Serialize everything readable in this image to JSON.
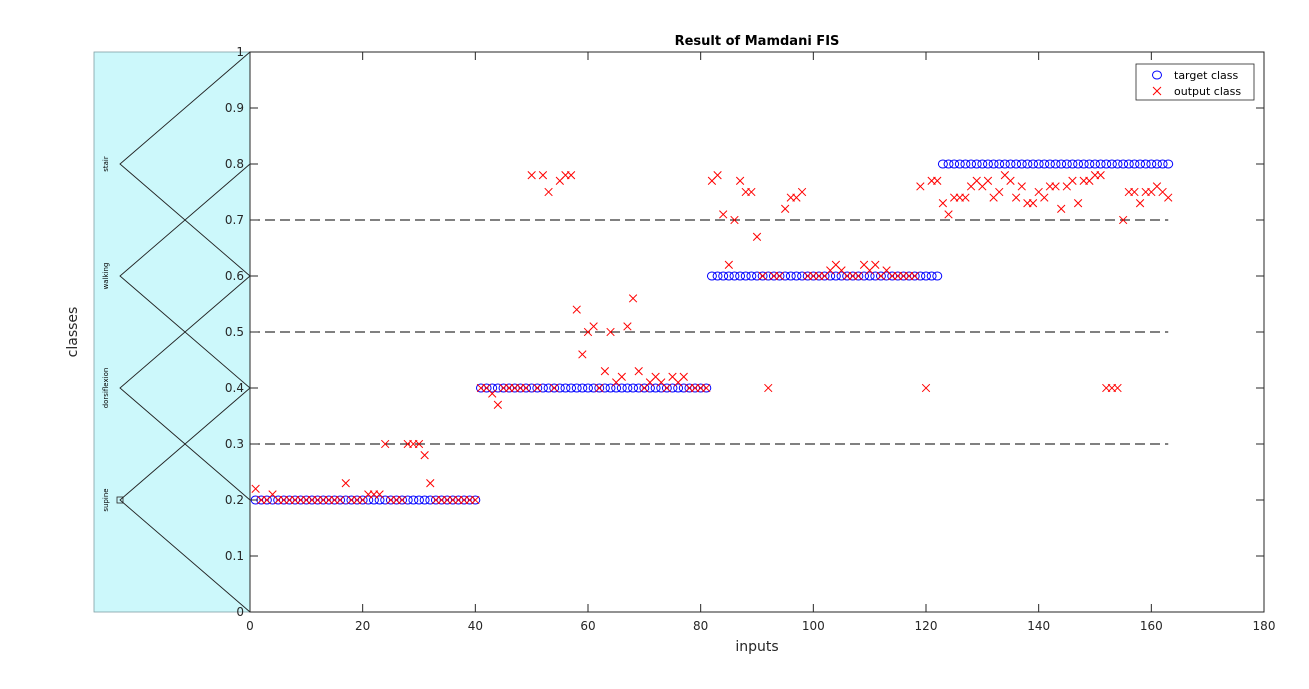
{
  "chart_data": {
    "type": "scatter",
    "title": "Result of Mamdani FIS",
    "xlabel": "inputs",
    "ylabel": "classes",
    "xlim": [
      0,
      180
    ],
    "ylim": [
      0,
      1
    ],
    "xticks": [
      0,
      20,
      40,
      60,
      80,
      100,
      120,
      140,
      160,
      180
    ],
    "yticks": [
      0,
      0.1,
      0.2,
      0.3,
      0.4,
      0.5,
      0.6,
      0.7,
      0.8,
      0.9,
      1
    ],
    "grid": false,
    "legend_position": "top-right",
    "thresholds": [
      {
        "y": 0.3,
        "x_range": [
          0,
          163
        ],
        "style": "dashed"
      },
      {
        "y": 0.5,
        "x_range": [
          0,
          163
        ],
        "style": "dashed"
      },
      {
        "y": 0.7,
        "x_range": [
          0,
          163
        ],
        "style": "dashed"
      }
    ],
    "membership_panel": {
      "background": "#ccf8fb",
      "labels": [
        "stair",
        "walking",
        "dorsiflexion",
        "supine"
      ],
      "peaks": [
        0.8,
        0.6,
        0.4,
        0.2
      ],
      "half_width": 0.2,
      "marker_y": 0.2
    },
    "series": [
      {
        "name": "target class",
        "marker": "circle",
        "color": "#0000ff",
        "segments": [
          {
            "x_start": 1,
            "x_end": 40,
            "y": 0.2
          },
          {
            "x_start": 41,
            "x_end": 81,
            "y": 0.4
          },
          {
            "x_start": 82,
            "x_end": 122,
            "y": 0.6
          },
          {
            "x_start": 123,
            "x_end": 163,
            "y": 0.8
          }
        ]
      },
      {
        "name": "output class",
        "marker": "x",
        "color": "#ff0000",
        "points": [
          [
            1,
            0.22
          ],
          [
            2,
            0.2
          ],
          [
            3,
            0.2
          ],
          [
            4,
            0.21
          ],
          [
            5,
            0.2
          ],
          [
            6,
            0.2
          ],
          [
            7,
            0.2
          ],
          [
            8,
            0.2
          ],
          [
            9,
            0.2
          ],
          [
            10,
            0.2
          ],
          [
            11,
            0.2
          ],
          [
            12,
            0.2
          ],
          [
            13,
            0.2
          ],
          [
            14,
            0.2
          ],
          [
            15,
            0.2
          ],
          [
            16,
            0.2
          ],
          [
            17,
            0.23
          ],
          [
            18,
            0.2
          ],
          [
            19,
            0.2
          ],
          [
            20,
            0.2
          ],
          [
            21,
            0.21
          ],
          [
            22,
            0.21
          ],
          [
            23,
            0.21
          ],
          [
            24,
            0.3
          ],
          [
            25,
            0.2
          ],
          [
            26,
            0.2
          ],
          [
            27,
            0.2
          ],
          [
            28,
            0.3
          ],
          [
            29,
            0.3
          ],
          [
            30,
            0.3
          ],
          [
            31,
            0.28
          ],
          [
            32,
            0.23
          ],
          [
            33,
            0.2
          ],
          [
            34,
            0.2
          ],
          [
            35,
            0.2
          ],
          [
            36,
            0.2
          ],
          [
            37,
            0.2
          ],
          [
            38,
            0.2
          ],
          [
            39,
            0.2
          ],
          [
            40,
            0.2
          ],
          [
            41,
            0.4
          ],
          [
            42,
            0.4
          ],
          [
            43,
            0.39
          ],
          [
            44,
            0.37
          ],
          [
            45,
            0.4
          ],
          [
            46,
            0.4
          ],
          [
            47,
            0.4
          ],
          [
            48,
            0.4
          ],
          [
            49,
            0.4
          ],
          [
            50,
            0.78
          ],
          [
            51,
            0.4
          ],
          [
            52,
            0.78
          ],
          [
            53,
            0.75
          ],
          [
            54,
            0.4
          ],
          [
            55,
            0.77
          ],
          [
            56,
            0.78
          ],
          [
            57,
            0.78
          ],
          [
            58,
            0.54
          ],
          [
            59,
            0.46
          ],
          [
            60,
            0.5
          ],
          [
            61,
            0.51
          ],
          [
            62,
            0.4
          ],
          [
            63,
            0.43
          ],
          [
            64,
            0.5
          ],
          [
            65,
            0.41
          ],
          [
            66,
            0.42
          ],
          [
            67,
            0.51
          ],
          [
            68,
            0.56
          ],
          [
            69,
            0.43
          ],
          [
            70,
            0.4
          ],
          [
            71,
            0.41
          ],
          [
            72,
            0.42
          ],
          [
            73,
            0.41
          ],
          [
            74,
            0.4
          ],
          [
            75,
            0.42
          ],
          [
            76,
            0.41
          ],
          [
            77,
            0.42
          ],
          [
            78,
            0.4
          ],
          [
            79,
            0.4
          ],
          [
            80,
            0.4
          ],
          [
            81,
            0.4
          ],
          [
            82,
            0.77
          ],
          [
            83,
            0.78
          ],
          [
            84,
            0.71
          ],
          [
            85,
            0.62
          ],
          [
            86,
            0.7
          ],
          [
            87,
            0.77
          ],
          [
            88,
            0.75
          ],
          [
            89,
            0.75
          ],
          [
            90,
            0.67
          ],
          [
            91,
            0.6
          ],
          [
            92,
            0.4
          ],
          [
            93,
            0.6
          ],
          [
            94,
            0.6
          ],
          [
            95,
            0.72
          ],
          [
            96,
            0.74
          ],
          [
            97,
            0.74
          ],
          [
            98,
            0.75
          ],
          [
            99,
            0.6
          ],
          [
            100,
            0.6
          ],
          [
            101,
            0.6
          ],
          [
            102,
            0.6
          ],
          [
            103,
            0.61
          ],
          [
            104,
            0.62
          ],
          [
            105,
            0.61
          ],
          [
            106,
            0.6
          ],
          [
            107,
            0.6
          ],
          [
            108,
            0.6
          ],
          [
            109,
            0.62
          ],
          [
            110,
            0.61
          ],
          [
            111,
            0.62
          ],
          [
            112,
            0.6
          ],
          [
            113,
            0.61
          ],
          [
            114,
            0.6
          ],
          [
            115,
            0.6
          ],
          [
            116,
            0.6
          ],
          [
            117,
            0.6
          ],
          [
            118,
            0.6
          ],
          [
            119,
            0.76
          ],
          [
            120,
            0.4
          ],
          [
            121,
            0.77
          ],
          [
            122,
            0.77
          ],
          [
            123,
            0.73
          ],
          [
            124,
            0.71
          ],
          [
            125,
            0.74
          ],
          [
            126,
            0.74
          ],
          [
            127,
            0.74
          ],
          [
            128,
            0.76
          ],
          [
            129,
            0.77
          ],
          [
            130,
            0.76
          ],
          [
            131,
            0.77
          ],
          [
            132,
            0.74
          ],
          [
            133,
            0.75
          ],
          [
            134,
            0.78
          ],
          [
            135,
            0.77
          ],
          [
            136,
            0.74
          ],
          [
            137,
            0.76
          ],
          [
            138,
            0.73
          ],
          [
            139,
            0.73
          ],
          [
            140,
            0.75
          ],
          [
            141,
            0.74
          ],
          [
            142,
            0.76
          ],
          [
            143,
            0.76
          ],
          [
            144,
            0.72
          ],
          [
            145,
            0.76
          ],
          [
            146,
            0.77
          ],
          [
            147,
            0.73
          ],
          [
            148,
            0.77
          ],
          [
            149,
            0.77
          ],
          [
            150,
            0.78
          ],
          [
            151,
            0.78
          ],
          [
            152,
            0.4
          ],
          [
            153,
            0.4
          ],
          [
            154,
            0.4
          ],
          [
            155,
            0.7
          ],
          [
            156,
            0.75
          ],
          [
            157,
            0.75
          ],
          [
            158,
            0.73
          ],
          [
            159,
            0.75
          ],
          [
            160,
            0.75
          ],
          [
            161,
            0.76
          ],
          [
            162,
            0.75
          ],
          [
            163,
            0.74
          ]
        ]
      }
    ]
  }
}
